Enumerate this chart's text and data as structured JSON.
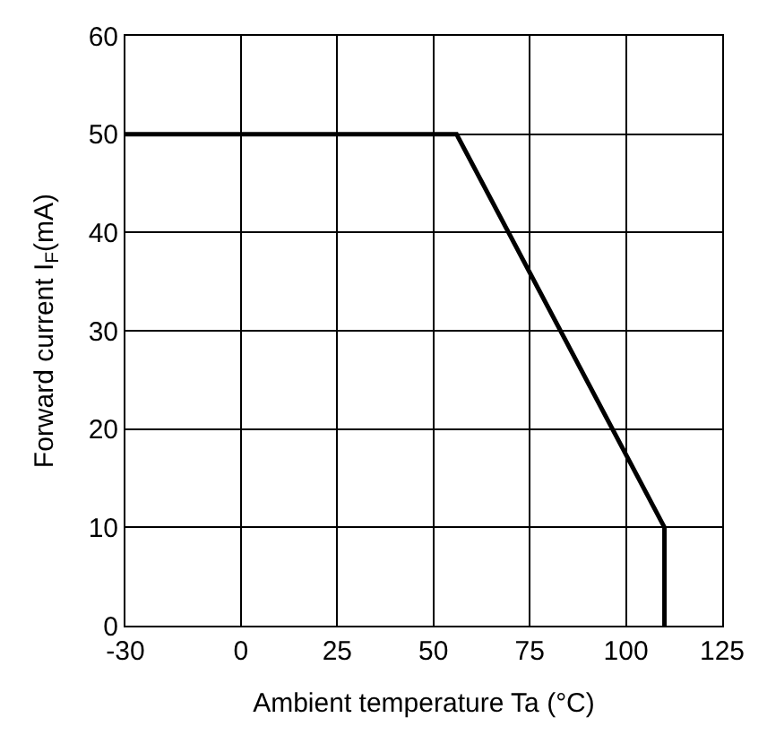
{
  "chart_data": {
    "type": "line",
    "xlabel": "Ambient temperature Ta (°C)",
    "ylabel": "Forward current I$_{F}$(mA)",
    "x": [
      -30,
      56,
      110,
      110
    ],
    "series": [
      {
        "color": "#000000",
        "values": [
          50,
          50,
          10,
          0
        ]
      }
    ],
    "xlim": [
      -30,
      125
    ],
    "xticks": [
      -30,
      0,
      25,
      50,
      75,
      100,
      125
    ],
    "ylim": [
      0,
      60
    ],
    "yticks": [
      0,
      10,
      20,
      30,
      40,
      50,
      60
    ],
    "grid": true,
    "legend": false,
    "marker": "none",
    "line_style": "solid"
  }
}
